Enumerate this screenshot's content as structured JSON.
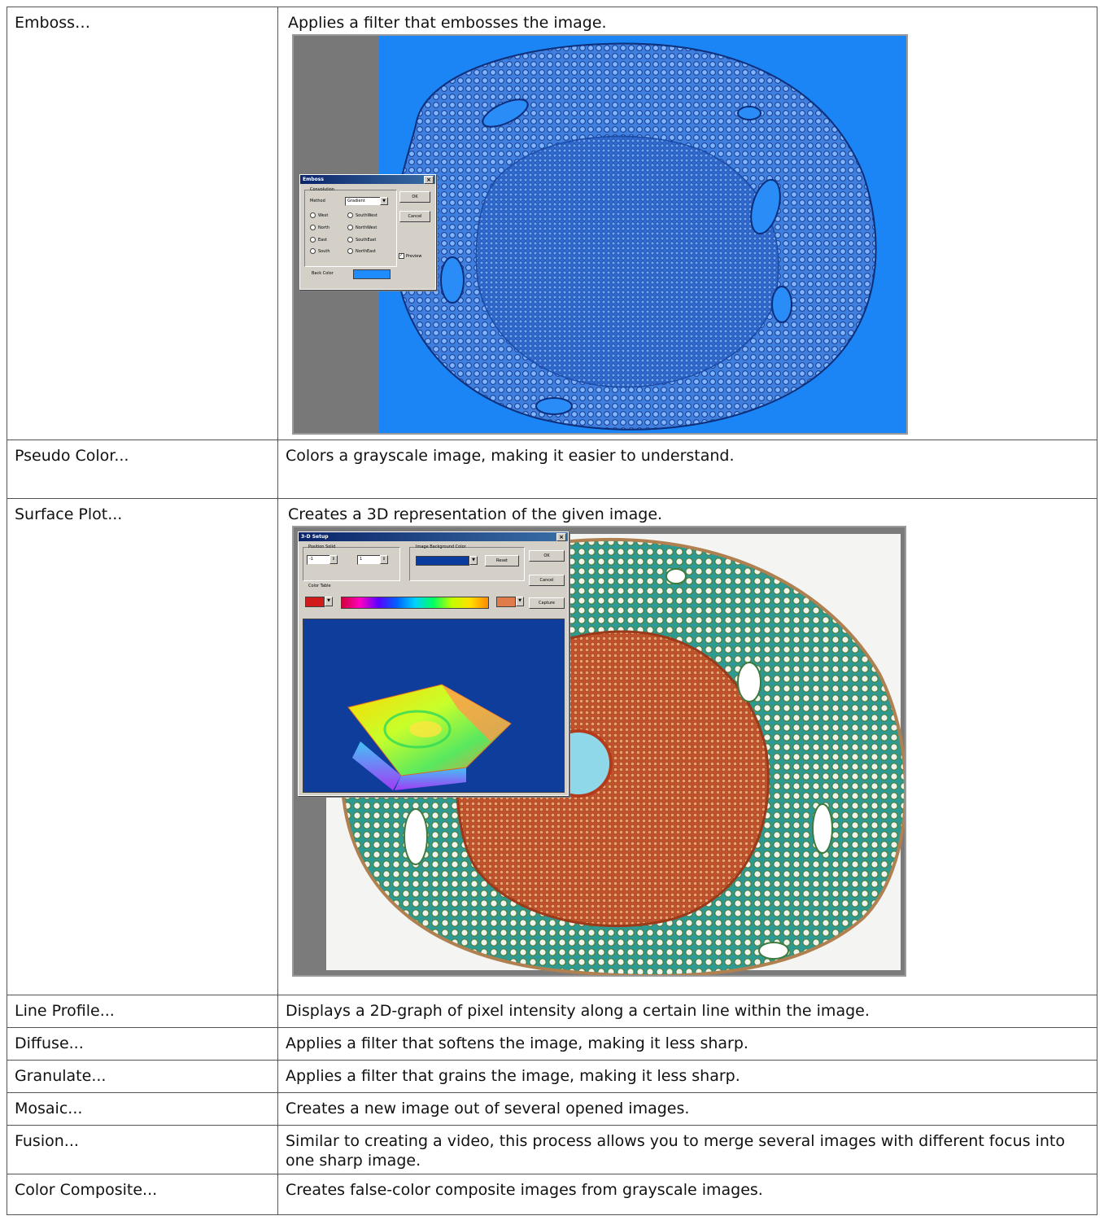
{
  "rows": [
    {
      "name": "Emboss…",
      "desc": "Applies a filter that embosses the image."
    },
    {
      "name": "Pseudo Color...",
      "desc": "Colors a grayscale image, making it easier to understand."
    },
    {
      "name": "Surface Plot...",
      "desc": "Creates a 3D representation of the given image."
    },
    {
      "name": "Line Profile...",
      "desc": "Displays a 2D-graph of pixel intensity along a certain line within the image."
    },
    {
      "name": "Diffuse...",
      "desc": "Applies a filter that softens the image, making it less sharp."
    },
    {
      "name": "Granulate...",
      "desc": "Applies a filter that grains the image, making it less sharp."
    },
    {
      "name": "Mosaic...",
      "desc": "Creates a new image out of several opened images."
    },
    {
      "name": "Fusion...",
      "desc": "Similar to creating a video, this process allows you to merge several images with different focus into one sharp image."
    },
    {
      "name": "Color Composite...",
      "desc": "Creates false-color composite images from grayscale images."
    }
  ],
  "emboss_dialog": {
    "title": "Emboss",
    "group_label": "Convolution",
    "method_label": "Method",
    "method_value": "Gradient",
    "directions": [
      "West",
      "SouthWest",
      "North",
      "NorthWest",
      "East",
      "SouthEast",
      "South",
      "NorthEast"
    ],
    "ok": "OK",
    "cancel": "Cancel",
    "preview": "Preview",
    "back_color_label": "Back Color",
    "back_color": "#1e8cff"
  },
  "surface_dialog": {
    "title": "3-D Setup",
    "position_label": "Position Solid",
    "pos_x": "-1",
    "pos_y": "1",
    "bg_label": "Image Background Color",
    "bg_color": "#0a3ca0",
    "reset": "Reset",
    "color_table_label": "Color Table",
    "ok": "OK",
    "cancel": "Cancel",
    "capture": "Capture",
    "low_color": "#d11a1a",
    "high_color": "#e07b4a"
  },
  "colors": {
    "emboss_bg": "#1c85f5",
    "plot_bg": "#0f3d9c",
    "specimen_orange": "#c2522b",
    "specimen_teal": "#2e9a94"
  }
}
